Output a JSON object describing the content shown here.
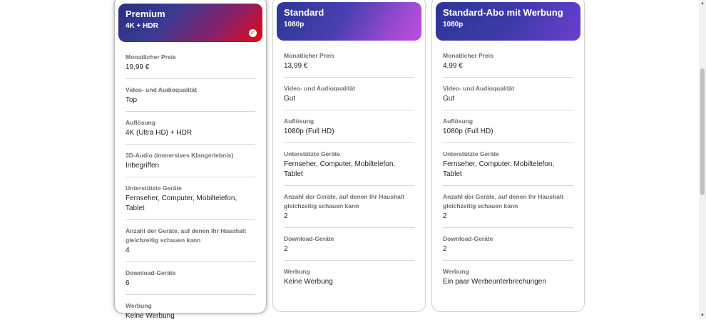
{
  "plans": [
    {
      "name": "Premium",
      "resolution": "4K + HDR",
      "selected": true,
      "rows": [
        {
          "label": "Monatlicher Preis",
          "value": "19,99 €"
        },
        {
          "label": "Video- und Audioqualität",
          "value": "Top"
        },
        {
          "label": "Auflösung",
          "value": "4K (Ultra HD) + HDR"
        },
        {
          "label": "3D-Audio (immersives Klangerlebnis)",
          "value": "Inbegriffen"
        },
        {
          "label": "Unterstützte Geräte",
          "value": "Fernseher, Computer, Mobiltelefon, Tablet"
        },
        {
          "label": "Anzahl der Geräte, auf denen Ihr Haushalt gleichzeitig schauen kann",
          "value": "4"
        },
        {
          "label": "Download-Geräte",
          "value": "6"
        },
        {
          "label": "Werbung",
          "value": "Keine Werbung"
        }
      ]
    },
    {
      "name": "Standard",
      "resolution": "1080p",
      "selected": false,
      "rows": [
        {
          "label": "Monatlicher Preis",
          "value": "13,99 €"
        },
        {
          "label": "Video- und Audioqualität",
          "value": "Gut"
        },
        {
          "label": "Auflösung",
          "value": "1080p (Full HD)"
        },
        {
          "label": "Unterstützte Geräte",
          "value": "Fernseher, Computer, Mobiltelefon, Tablet"
        },
        {
          "label": "Anzahl der Geräte, auf denen Ihr Haushalt gleichzeitig schauen kann",
          "value": "2"
        },
        {
          "label": "Download-Geräte",
          "value": "2"
        },
        {
          "label": "Werbung",
          "value": "Keine Werbung"
        }
      ]
    },
    {
      "name": "Standard-Abo mit Werbung",
      "resolution": "1080p",
      "selected": false,
      "rows": [
        {
          "label": "Monatlicher Preis",
          "value": "4,99 €"
        },
        {
          "label": "Video- und Audioqualität",
          "value": "Gut"
        },
        {
          "label": "Auflösung",
          "value": "1080p (Full HD)"
        },
        {
          "label": "Unterstützte Geräte",
          "value": "Fernseher, Computer, Mobiltelefon, Tablet"
        },
        {
          "label": "Anzahl der Geräte, auf denen Ihr Haushalt gleichzeitig schauen kann",
          "value": "2"
        },
        {
          "label": "Download-Geräte",
          "value": "2"
        },
        {
          "label": "Werbung",
          "value": "Ein paar Werbeunterbrechungen"
        }
      ]
    }
  ],
  "icons": {
    "selected_check": "check-circle-icon",
    "scroll_up": "scroll-up-arrow-icon",
    "scroll_down": "scroll-down-arrow-icon"
  },
  "colors": {
    "brand_red": "#e50914",
    "header_blue": "#2c3796",
    "label_gray": "#6d6d6e"
  }
}
